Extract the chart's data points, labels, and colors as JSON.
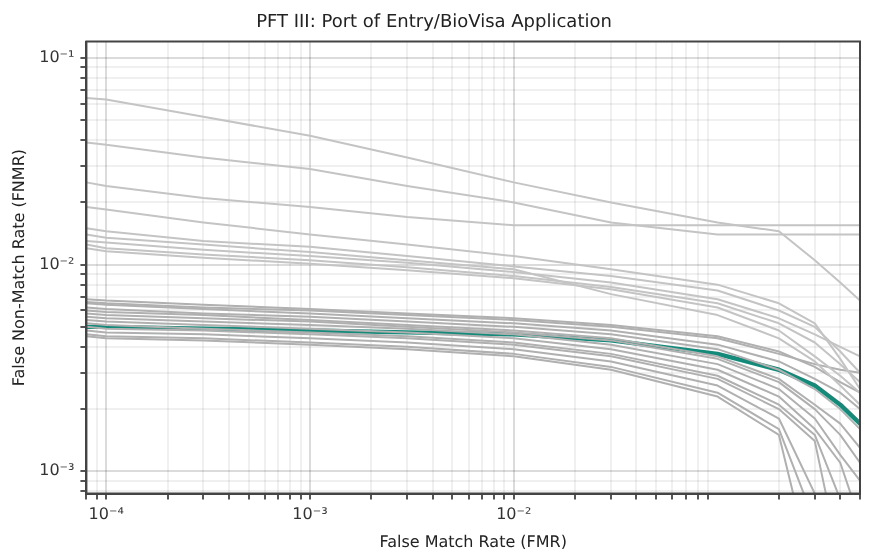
{
  "chart_data": {
    "type": "line",
    "title": "PFT III: Port of Entry/BioVisa Application",
    "xlabel": "False Match Rate (FMR)",
    "ylabel": "False Non-Match Rate (FNMR)",
    "log": "xy",
    "grid": true,
    "legend": false,
    "marker": "none",
    "line_style": "solid",
    "xlim": [
      8e-05,
      0.5
    ],
    "ylim": [
      0.00078,
      0.12
    ],
    "xticks": [
      {
        "value": 8e-05,
        "label": null
      },
      {
        "value": 9e-05,
        "label": null
      },
      {
        "value": 0.0001,
        "label": "10⁻⁴"
      },
      {
        "value": 0.0002,
        "label": null
      },
      {
        "value": 0.0003,
        "label": null
      },
      {
        "value": 0.0004,
        "label": null
      },
      {
        "value": 0.0005,
        "label": null
      },
      {
        "value": 0.0006,
        "label": null
      },
      {
        "value": 0.0007,
        "label": null
      },
      {
        "value": 0.0008,
        "label": null
      },
      {
        "value": 0.0009,
        "label": null
      },
      {
        "value": 0.001,
        "label": "10⁻³"
      },
      {
        "value": 0.002,
        "label": null
      },
      {
        "value": 0.003,
        "label": null
      },
      {
        "value": 0.004,
        "label": null
      },
      {
        "value": 0.005,
        "label": null
      },
      {
        "value": 0.006,
        "label": null
      },
      {
        "value": 0.007,
        "label": null
      },
      {
        "value": 0.008,
        "label": null
      },
      {
        "value": 0.009,
        "label": null
      },
      {
        "value": 0.01,
        "label": "10⁻²"
      },
      {
        "value": 0.02,
        "label": null
      },
      {
        "value": 0.03,
        "label": null
      },
      {
        "value": 0.04,
        "label": null
      },
      {
        "value": 0.05,
        "label": null
      },
      {
        "value": 0.06,
        "label": null
      },
      {
        "value": 0.07,
        "label": null
      },
      {
        "value": 0.08,
        "label": null
      },
      {
        "value": 0.09,
        "label": null
      },
      {
        "value": 0.2,
        "label": null
      },
      {
        "value": 0.3,
        "label": null
      },
      {
        "value": 0.4,
        "label": null
      },
      {
        "value": 0.5,
        "label": null
      }
    ],
    "yticks": [
      {
        "value": 0.0008,
        "label": null
      },
      {
        "value": 0.0009,
        "label": null
      },
      {
        "value": 0.001,
        "label": "10⁻³"
      },
      {
        "value": 0.002,
        "label": null
      },
      {
        "value": 0.003,
        "label": null
      },
      {
        "value": 0.004,
        "label": null
      },
      {
        "value": 0.005,
        "label": null
      },
      {
        "value": 0.006,
        "label": null
      },
      {
        "value": 0.007,
        "label": null
      },
      {
        "value": 0.008,
        "label": null
      },
      {
        "value": 0.009,
        "label": null
      },
      {
        "value": 0.01,
        "label": "10⁻²"
      },
      {
        "value": 0.02,
        "label": null
      },
      {
        "value": 0.03,
        "label": null
      },
      {
        "value": 0.04,
        "label": null
      },
      {
        "value": 0.05,
        "label": null
      },
      {
        "value": 0.06,
        "label": null
      },
      {
        "value": 0.07,
        "label": null
      },
      {
        "value": 0.08,
        "label": null
      },
      {
        "value": 0.09,
        "label": null
      },
      {
        "value": 0.1,
        "label": "10⁻¹"
      }
    ],
    "x": [
      8e-05,
      0.0001,
      0.0003,
      0.001,
      0.003,
      0.01,
      0.03,
      0.1,
      0.2,
      0.3,
      0.4,
      0.5
    ],
    "series": [
      {
        "color": "#c4c4c4",
        "values": [
          0.064,
          0.063,
          0.052,
          0.042,
          0.033,
          0.025,
          0.02,
          0.016,
          0.0145,
          0.0105,
          0.0082,
          0.0067
        ]
      },
      {
        "color": "#c4c4c4",
        "values": [
          0.039,
          0.038,
          0.033,
          0.029,
          0.024,
          0.02,
          0.016,
          0.014,
          0.014,
          0.014,
          0.014,
          0.014
        ]
      },
      {
        "color": "#c4c4c4",
        "values": [
          0.025,
          0.024,
          0.021,
          0.019,
          0.017,
          0.0155,
          0.0155,
          0.0155,
          0.0155,
          0.0155,
          0.0155,
          0.0155
        ]
      },
      {
        "color": "#c4c4c4",
        "values": [
          0.019,
          0.0185,
          0.016,
          0.014,
          0.0125,
          0.011,
          0.0095,
          0.008,
          0.0065,
          0.0052,
          0.0035,
          0.0025
        ]
      },
      {
        "color": "#c4c4c4",
        "values": [
          0.015,
          0.0145,
          0.013,
          0.0122,
          0.011,
          0.0098,
          0.0088,
          0.0075,
          0.006,
          0.005,
          0.0038,
          0.003
        ]
      },
      {
        "color": "#c4c4c4",
        "values": [
          0.014,
          0.0135,
          0.0125,
          0.0115,
          0.0105,
          0.0095,
          0.0072,
          0.0057,
          0.0044,
          0.0034,
          0.0026,
          0.0021
        ]
      },
      {
        "color": "#c4c4c4",
        "values": [
          0.013,
          0.0128,
          0.0118,
          0.011,
          0.0102,
          0.0092,
          0.0082,
          0.0068,
          0.0055,
          0.0046,
          0.004,
          0.0036
        ]
      },
      {
        "color": "#c4c4c4",
        "values": [
          0.0125,
          0.012,
          0.0112,
          0.0105,
          0.0097,
          0.0088,
          0.0078,
          0.0065,
          0.0052,
          0.0042,
          0.0033,
          0.0027
        ]
      },
      {
        "color": "#c4c4c4",
        "values": [
          0.012,
          0.0116,
          0.0108,
          0.0101,
          0.0094,
          0.0086,
          0.0076,
          0.0062,
          0.0048,
          0.0036,
          0.0029,
          0.0024
        ]
      },
      {
        "color": "#b0b0b0",
        "values": [
          0.0068,
          0.0067,
          0.0064,
          0.0061,
          0.0058,
          0.0055,
          0.0051,
          0.0045,
          0.0038,
          0.0032,
          0.0027,
          0.0024
        ]
      },
      {
        "color": "#b0b0b0",
        "values": [
          0.0066,
          0.0065,
          0.0062,
          0.006,
          0.0057,
          0.0054,
          0.005,
          0.0044,
          0.0037,
          0.0033,
          0.0031,
          0.003
        ]
      },
      {
        "color": "#b0b0b0",
        "values": [
          0.0065,
          0.0064,
          0.0061,
          0.0058,
          0.0055,
          0.0052,
          0.0048,
          0.0041,
          0.0034,
          0.0028,
          0.0024,
          0.002
        ]
      },
      {
        "color": "#b0b0b0",
        "values": [
          0.0062,
          0.0061,
          0.0058,
          0.0056,
          0.0053,
          0.005,
          0.0046,
          0.0039,
          0.0031,
          0.0025,
          0.002,
          0.0016
        ]
      },
      {
        "color": "#b0b0b0",
        "values": [
          0.006,
          0.0059,
          0.0057,
          0.0054,
          0.0051,
          0.0048,
          0.0044,
          0.0036,
          0.0028,
          0.0021,
          0.0017,
          0.0013
        ]
      },
      {
        "color": "#b0b0b0",
        "values": [
          0.0058,
          0.0057,
          0.0055,
          0.0053,
          0.005,
          0.0047,
          0.0043,
          0.0035,
          0.0027,
          0.002,
          0.0015,
          0.0011
        ]
      },
      {
        "color": "#b0b0b0",
        "values": [
          0.0056,
          0.0055,
          0.0053,
          0.0051,
          0.0049,
          0.0046,
          0.0041,
          0.0033,
          0.0025,
          0.0018,
          0.0012,
          0.0009
        ]
      },
      {
        "color": "#b0b0b0",
        "x": [
          8e-05,
          0.0001,
          0.0003,
          0.001,
          0.003,
          0.01,
          0.03,
          0.1,
          0.2,
          0.3,
          0.4,
          0.45
        ],
        "values": [
          0.0054,
          0.0053,
          0.0051,
          0.0049,
          0.0047,
          0.0044,
          0.0039,
          0.0031,
          0.0023,
          0.0016,
          0.0011,
          0.00078
        ]
      },
      {
        "color": "#b0b0b0",
        "x": [
          8e-05,
          0.0001,
          0.0003,
          0.001,
          0.003,
          0.01,
          0.03,
          0.1,
          0.2,
          0.3,
          0.39
        ],
        "values": [
          0.0052,
          0.0051,
          0.0049,
          0.0047,
          0.0045,
          0.0042,
          0.0037,
          0.0029,
          0.0021,
          0.0015,
          0.00078
        ]
      },
      {
        "color": "#b0b0b0",
        "x": [
          8e-05,
          0.0001,
          0.0003,
          0.001,
          0.003,
          0.01,
          0.03,
          0.1,
          0.2,
          0.3,
          0.34
        ],
        "values": [
          0.005,
          0.0049,
          0.0048,
          0.0046,
          0.0044,
          0.0041,
          0.0036,
          0.0028,
          0.002,
          0.0014,
          0.00078
        ]
      },
      {
        "color": "#b0b0b0",
        "x": [
          8e-05,
          0.0001,
          0.0003,
          0.001,
          0.003,
          0.01,
          0.03,
          0.1,
          0.2,
          0.3
        ],
        "values": [
          0.0048,
          0.0047,
          0.0046,
          0.0044,
          0.0042,
          0.0039,
          0.0034,
          0.0026,
          0.0018,
          0.00078
        ]
      },
      {
        "color": "#b0b0b0",
        "x": [
          8e-05,
          0.0001,
          0.0003,
          0.001,
          0.003,
          0.01,
          0.03,
          0.1,
          0.2,
          0.265
        ],
        "values": [
          0.0046,
          0.0045,
          0.0044,
          0.0042,
          0.004,
          0.0037,
          0.0032,
          0.0024,
          0.0016,
          0.00078
        ]
      },
      {
        "color": "#b0b0b0",
        "x": [
          8e-05,
          0.0001,
          0.0003,
          0.001,
          0.003,
          0.01,
          0.03,
          0.1,
          0.2,
          0.235
        ],
        "values": [
          0.0045,
          0.0044,
          0.0043,
          0.0041,
          0.0039,
          0.0036,
          0.0031,
          0.0023,
          0.0015,
          0.00078
        ]
      },
      {
        "color": "#138a7a",
        "values": [
          0.005,
          0.005,
          0.0049,
          0.0048,
          0.0047,
          0.0046,
          0.0043,
          0.0037,
          0.0031,
          0.0026,
          0.0021,
          0.0017
        ]
      }
    ]
  }
}
